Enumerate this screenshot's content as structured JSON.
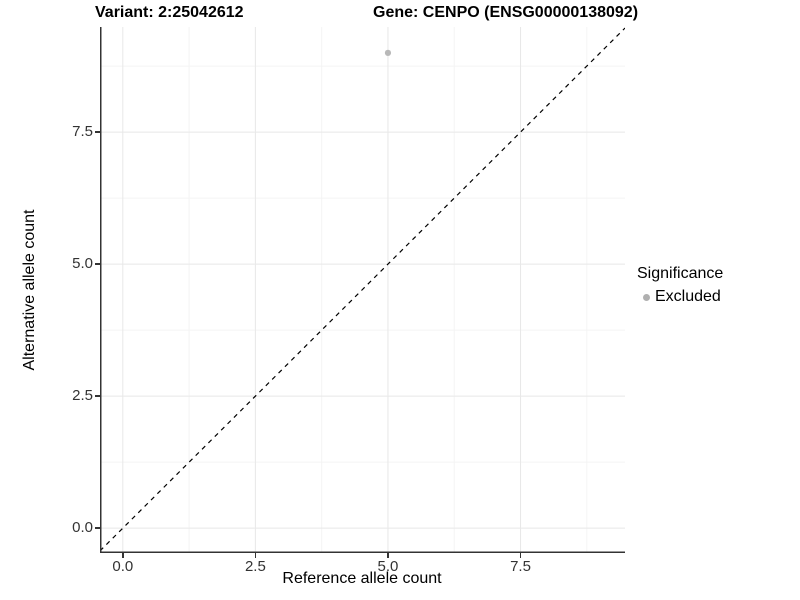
{
  "chart_data": {
    "type": "scatter",
    "title_left": "Variant: 2:25042612",
    "title_right": "Gene: CENPO (ENSG00000138092)",
    "xlabel": "Reference allele count",
    "ylabel": "Alternative allele count",
    "xlim": [
      -0.43,
      9.47
    ],
    "ylim": [
      -0.47,
      9.49
    ],
    "x_ticks": [
      0.0,
      2.5,
      5.0,
      7.5
    ],
    "y_ticks": [
      0.0,
      2.5,
      5.0,
      7.5
    ],
    "x_minor_ticks": [
      1.25,
      3.75,
      6.25,
      8.75
    ],
    "y_minor_ticks": [
      1.25,
      3.75,
      6.25,
      8.75
    ],
    "grid": {
      "major": true,
      "minor": true
    },
    "points": [
      {
        "x": 5,
        "y": 9,
        "significance": "Excluded",
        "color": "#b8b8b8"
      }
    ],
    "abline": {
      "slope": 1,
      "intercept": 0,
      "linetype": "dashed",
      "color": "#000000"
    },
    "legend": {
      "title": "Significance",
      "position": "right",
      "items": [
        {
          "label": "Excluded",
          "color": "#b0b0b0"
        }
      ]
    },
    "colors": {
      "axis_line": "#333333",
      "major_grid": "#e8e8e8",
      "minor_grid": "#f4f4f4",
      "tick_text": "#333333"
    }
  }
}
